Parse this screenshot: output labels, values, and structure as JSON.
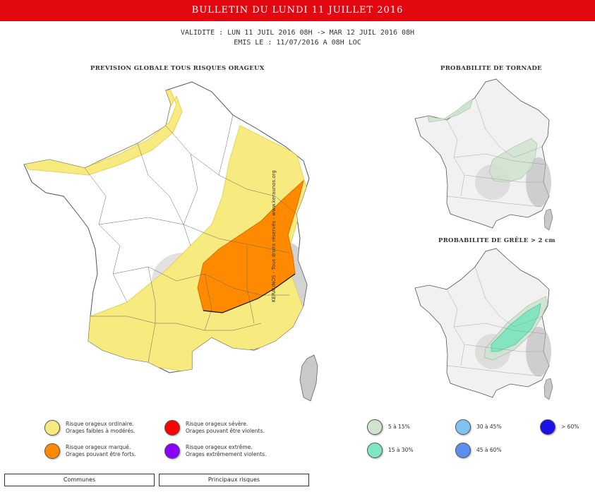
{
  "banner": {
    "title": "BULLETIN DU LUNDI 11 JUILLET 2016"
  },
  "validity": {
    "line1": "VALIDITE : LUN 11 JUIL 2016 08H -> MAR 12 JUIL 2016 08H",
    "line2": "EMIS LE : 11/07/2016 A 08H LOC"
  },
  "main_map": {
    "title": "PREVISION GLOBALE TOUS RISQUES ORAGEUX",
    "credit": "KERAUNOS - Tous droits réservés - www.keraunos.org"
  },
  "tornado_map": {
    "title": "PROBABILITE DE TORNADE"
  },
  "hail_map": {
    "title": "PROBABILITE DE GRÊLE > 2 cm"
  },
  "legend_risk": [
    {
      "line1": "Risque orageux ordinaire.",
      "line2": "Orages faibles à modérés.",
      "color": "#f7ea7f"
    },
    {
      "line1": "Risque orageux sévère.",
      "line2": "Orages pouvant être violents.",
      "color": "#ff0000"
    },
    {
      "line1": "Risque orageux marqué.",
      "line2": "Orages pouvant être forts.",
      "color": "#ff8a00"
    },
    {
      "line1": "Risque orageux extrême.",
      "line2": "Orages extrêmement violents.",
      "color": "#8a00ff"
    }
  ],
  "legend_prob": [
    {
      "label": "5 à 15%",
      "color": "#cfe3cf"
    },
    {
      "label": "30 à 45%",
      "color": "#7ec3ef"
    },
    {
      "label": "> 60%",
      "color": "#1a10e8"
    },
    {
      "label": "15 à 30%",
      "color": "#7fe6c0"
    },
    {
      "label": "45 à 60%",
      "color": "#5a8ff0"
    }
  ],
  "buttons": {
    "communes": "Communes",
    "principaux": "Principaux risques"
  },
  "colors": {
    "banner": "#e3080f",
    "yellow_risk": "#f7ea7f",
    "orange_risk": "#ff8a00",
    "tornado_5_15": "#cfe3cf",
    "hail_15_30": "#7fe6c0"
  }
}
